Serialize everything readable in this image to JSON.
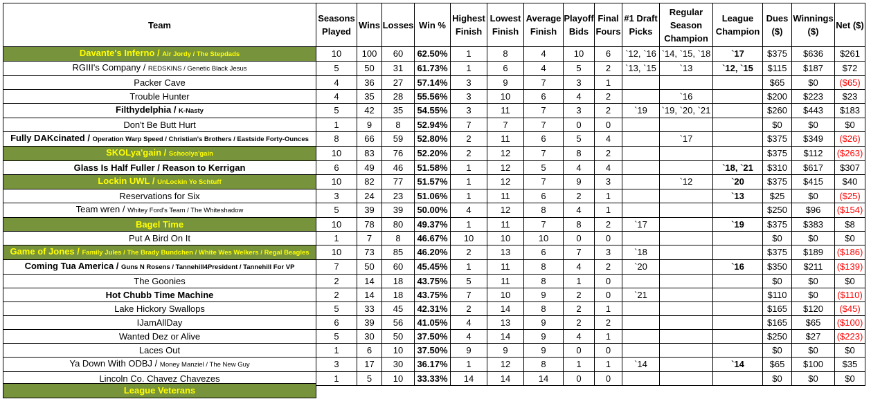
{
  "colors": {
    "highlight_bg": "#77933c",
    "highlight_text": "#ffff00",
    "negative": "#ff0000"
  },
  "headers": {
    "team": "Team",
    "seasons": "Seasons Played",
    "wins": "Wins",
    "losses": "Losses",
    "win_pct": "Win %",
    "highest": "Highest Finish",
    "lowest": "Lowest Finish",
    "average": "Average Finish",
    "playoff": "Playoff Bids",
    "final_fours": "Final Fours",
    "draft_picks": "#1 Draft Picks",
    "rs_champ": "Regular Season Champion",
    "league_champ": "League Champion",
    "dues": "Dues ($)",
    "winnings": "Winnings ($)",
    "net": "Net ($)"
  },
  "rows": [
    {
      "name": "Davante's Inferno",
      "alias": "Air Jordy / The Stepdads",
      "veteran": true,
      "bold": true,
      "seasons": "10",
      "wins": "100",
      "losses": "60",
      "pct": "62.50%",
      "highest": "1",
      "lowest": "8",
      "average": "4",
      "playoff": "10",
      "final_fours": "6",
      "draft": "`12, `16",
      "rs": "`14, `15, `18",
      "champ": "`17",
      "dues": "$375",
      "winnings": "$636",
      "net": "$261",
      "neg": false
    },
    {
      "name": "RGIII's Company",
      "alias": "REDSKINS / Genetic Black Jesus",
      "veteran": false,
      "bold": false,
      "seasons": "5",
      "wins": "50",
      "losses": "31",
      "pct": "61.73%",
      "highest": "1",
      "lowest": "6",
      "average": "4",
      "playoff": "5",
      "final_fours": "2",
      "draft": "`13, `15",
      "rs": "`13",
      "champ": "`12, `15",
      "dues": "$115",
      "winnings": "$187",
      "net": "$72",
      "neg": false
    },
    {
      "name": "Packer Cave",
      "alias": "",
      "veteran": false,
      "bold": false,
      "seasons": "4",
      "wins": "36",
      "losses": "27",
      "pct": "57.14%",
      "highest": "3",
      "lowest": "9",
      "average": "7",
      "playoff": "3",
      "final_fours": "1",
      "draft": "",
      "rs": "",
      "champ": "",
      "dues": "$65",
      "winnings": "$0",
      "net": "($65)",
      "neg": true
    },
    {
      "name": "Trouble Hunter",
      "alias": "",
      "veteran": false,
      "bold": false,
      "seasons": "4",
      "wins": "35",
      "losses": "28",
      "pct": "55.56%",
      "highest": "3",
      "lowest": "10",
      "average": "6",
      "playoff": "4",
      "final_fours": "2",
      "draft": "",
      "rs": "`16",
      "champ": "",
      "dues": "$200",
      "winnings": "$223",
      "net": "$23",
      "neg": false
    },
    {
      "name": "Filthydelphia",
      "alias": "K-Nasty",
      "veteran": false,
      "bold": true,
      "seasons": "5",
      "wins": "42",
      "losses": "35",
      "pct": "54.55%",
      "highest": "3",
      "lowest": "11",
      "average": "7",
      "playoff": "3",
      "final_fours": "2",
      "draft": "`19",
      "rs": "`19, `20, `21",
      "champ": "",
      "dues": "$260",
      "winnings": "$443",
      "net": "$183",
      "neg": false
    },
    {
      "name": "Don't Be Butt Hurt",
      "alias": "",
      "veteran": false,
      "bold": false,
      "seasons": "1",
      "wins": "9",
      "losses": "8",
      "pct": "52.94%",
      "highest": "7",
      "lowest": "7",
      "average": "7",
      "playoff": "0",
      "final_fours": "0",
      "draft": "",
      "rs": "",
      "champ": "",
      "dues": "$0",
      "winnings": "$0",
      "net": "$0",
      "neg": false
    },
    {
      "name": "Fully DAKcinated",
      "alias": "Operation Warp Speed / Christian's Brothers / Eastside Forty-Ounces",
      "veteran": false,
      "bold": true,
      "seasons": "8",
      "wins": "66",
      "losses": "59",
      "pct": "52.80%",
      "highest": "2",
      "lowest": "11",
      "average": "6",
      "playoff": "5",
      "final_fours": "4",
      "draft": "",
      "rs": "`17",
      "champ": "",
      "dues": "$375",
      "winnings": "$349",
      "net": "($26)",
      "neg": true
    },
    {
      "name": "SKOLya'gain",
      "alias": "Schoolya'gain",
      "veteran": true,
      "bold": true,
      "seasons": "10",
      "wins": "83",
      "losses": "76",
      "pct": "52.20%",
      "highest": "2",
      "lowest": "12",
      "average": "7",
      "playoff": "8",
      "final_fours": "2",
      "draft": "",
      "rs": "",
      "champ": "",
      "dues": "$375",
      "winnings": "$112",
      "net": "($263)",
      "neg": true
    },
    {
      "name": "Glass Is Half Fuller / Reason to Kerrigan",
      "alias": "",
      "veteran": false,
      "bold": true,
      "seasons": "6",
      "wins": "49",
      "losses": "46",
      "pct": "51.58%",
      "highest": "1",
      "lowest": "12",
      "average": "5",
      "playoff": "4",
      "final_fours": "4",
      "draft": "",
      "rs": "",
      "champ": "`18, `21",
      "dues": "$310",
      "winnings": "$617",
      "net": "$307",
      "neg": false
    },
    {
      "name": "Lockin UWL",
      "alias": "UnLockin Yo Schtuff",
      "veteran": true,
      "bold": true,
      "seasons": "10",
      "wins": "82",
      "losses": "77",
      "pct": "51.57%",
      "highest": "1",
      "lowest": "12",
      "average": "7",
      "playoff": "9",
      "final_fours": "3",
      "draft": "",
      "rs": "`12",
      "champ": "`20",
      "dues": "$375",
      "winnings": "$415",
      "net": "$40",
      "neg": false
    },
    {
      "name": "Reservations for Six",
      "alias": "",
      "veteran": false,
      "bold": false,
      "seasons": "3",
      "wins": "24",
      "losses": "23",
      "pct": "51.06%",
      "highest": "1",
      "lowest": "11",
      "average": "6",
      "playoff": "2",
      "final_fours": "1",
      "draft": "",
      "rs": "",
      "champ": "`13",
      "dues": "$25",
      "winnings": "$0",
      "net": "($25)",
      "neg": true
    },
    {
      "name": "Team wren",
      "alias": "Whitey Ford's Team / The Whiteshadow",
      "veteran": false,
      "bold": false,
      "seasons": "5",
      "wins": "39",
      "losses": "39",
      "pct": "50.00%",
      "highest": "4",
      "lowest": "12",
      "average": "8",
      "playoff": "4",
      "final_fours": "1",
      "draft": "",
      "rs": "",
      "champ": "",
      "dues": "$250",
      "winnings": "$96",
      "net": "($154)",
      "neg": true
    },
    {
      "name": "Bagel Time",
      "alias": "",
      "veteran": true,
      "bold": true,
      "seasons": "10",
      "wins": "78",
      "losses": "80",
      "pct": "49.37%",
      "highest": "1",
      "lowest": "11",
      "average": "7",
      "playoff": "8",
      "final_fours": "2",
      "draft": "`17",
      "rs": "",
      "champ": "`19",
      "dues": "$375",
      "winnings": "$383",
      "net": "$8",
      "neg": false
    },
    {
      "name": "Put A Bird On It",
      "alias": "",
      "veteran": false,
      "bold": false,
      "seasons": "1",
      "wins": "7",
      "losses": "8",
      "pct": "46.67%",
      "highest": "10",
      "lowest": "10",
      "average": "10",
      "playoff": "0",
      "final_fours": "0",
      "draft": "",
      "rs": "",
      "champ": "",
      "dues": "$0",
      "winnings": "$0",
      "net": "$0",
      "neg": false
    },
    {
      "name": "Game of Jones",
      "alias": "Family Jules / The Brady Bundchen / White Wes Welkers / Regal Beagles",
      "veteran": true,
      "bold": true,
      "seasons": "10",
      "wins": "73",
      "losses": "85",
      "pct": "46.20%",
      "highest": "2",
      "lowest": "13",
      "average": "6",
      "playoff": "7",
      "final_fours": "3",
      "draft": "`18",
      "rs": "",
      "champ": "",
      "dues": "$375",
      "winnings": "$189",
      "net": "($186)",
      "neg": true
    },
    {
      "name": "Coming Tua America",
      "alias": "Guns N Rosens / Tannehill4President / Tannehill For VP",
      "veteran": false,
      "bold": true,
      "seasons": "7",
      "wins": "50",
      "losses": "60",
      "pct": "45.45%",
      "highest": "1",
      "lowest": "11",
      "average": "8",
      "playoff": "4",
      "final_fours": "2",
      "draft": "`20",
      "rs": "",
      "champ": "`16",
      "dues": "$350",
      "winnings": "$211",
      "net": "($139)",
      "neg": true
    },
    {
      "name": "The Goonies",
      "alias": "",
      "veteran": false,
      "bold": false,
      "seasons": "2",
      "wins": "14",
      "losses": "18",
      "pct": "43.75%",
      "highest": "5",
      "lowest": "11",
      "average": "8",
      "playoff": "1",
      "final_fours": "0",
      "draft": "",
      "rs": "",
      "champ": "",
      "dues": "$0",
      "winnings": "$0",
      "net": "$0",
      "neg": false
    },
    {
      "name": "Hot Chubb Time Machine",
      "alias": "",
      "veteran": false,
      "bold": true,
      "seasons": "2",
      "wins": "14",
      "losses": "18",
      "pct": "43.75%",
      "highest": "7",
      "lowest": "10",
      "average": "9",
      "playoff": "2",
      "final_fours": "0",
      "draft": "`21",
      "rs": "",
      "champ": "",
      "dues": "$110",
      "winnings": "$0",
      "net": "($110)",
      "neg": true
    },
    {
      "name": "Lake Hickory Swallops",
      "alias": "",
      "veteran": false,
      "bold": false,
      "seasons": "5",
      "wins": "33",
      "losses": "45",
      "pct": "42.31%",
      "highest": "2",
      "lowest": "14",
      "average": "8",
      "playoff": "2",
      "final_fours": "1",
      "draft": "",
      "rs": "",
      "champ": "",
      "dues": "$165",
      "winnings": "$120",
      "net": "($45)",
      "neg": true
    },
    {
      "name": "IJamAllDay",
      "alias": "",
      "veteran": false,
      "bold": false,
      "seasons": "6",
      "wins": "39",
      "losses": "56",
      "pct": "41.05%",
      "highest": "4",
      "lowest": "13",
      "average": "9",
      "playoff": "2",
      "final_fours": "2",
      "draft": "",
      "rs": "",
      "champ": "",
      "dues": "$165",
      "winnings": "$65",
      "net": "($100)",
      "neg": true
    },
    {
      "name": "Wanted Dez or Alive",
      "alias": "",
      "veteran": false,
      "bold": false,
      "seasons": "5",
      "wins": "30",
      "losses": "50",
      "pct": "37.50%",
      "highest": "4",
      "lowest": "14",
      "average": "9",
      "playoff": "4",
      "final_fours": "1",
      "draft": "",
      "rs": "",
      "champ": "",
      "dues": "$250",
      "winnings": "$27",
      "net": "($223)",
      "neg": true
    },
    {
      "name": "Laces Out",
      "alias": "",
      "veteran": false,
      "bold": false,
      "seasons": "1",
      "wins": "6",
      "losses": "10",
      "pct": "37.50%",
      "highest": "9",
      "lowest": "9",
      "average": "9",
      "playoff": "0",
      "final_fours": "0",
      "draft": "",
      "rs": "",
      "champ": "",
      "dues": "$0",
      "winnings": "$0",
      "net": "$0",
      "neg": false
    },
    {
      "name": "Ya Down With ODBJ",
      "alias": "Money Manziel / The New Guy",
      "veteran": false,
      "bold": false,
      "seasons": "3",
      "wins": "17",
      "losses": "30",
      "pct": "36.17%",
      "highest": "1",
      "lowest": "12",
      "average": "8",
      "playoff": "1",
      "final_fours": "1",
      "draft": "`14",
      "rs": "",
      "champ": "`14",
      "dues": "$65",
      "winnings": "$100",
      "net": "$35",
      "neg": false
    },
    {
      "name": "Lincoln Co. Chavez Chavezes",
      "alias": "",
      "veteran": false,
      "bold": false,
      "seasons": "1",
      "wins": "5",
      "losses": "10",
      "pct": "33.33%",
      "highest": "14",
      "lowest": "14",
      "average": "14",
      "playoff": "0",
      "final_fours": "0",
      "draft": "",
      "rs": "",
      "champ": "",
      "dues": "$0",
      "winnings": "$0",
      "net": "$0",
      "neg": false
    }
  ],
  "legend": {
    "label": "League Veterans"
  }
}
